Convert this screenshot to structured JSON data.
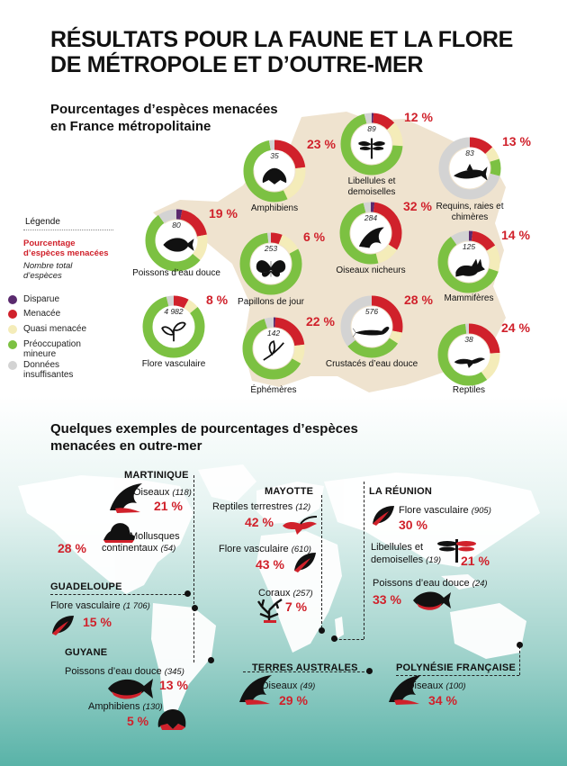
{
  "title": {
    "line1": "RÉSULTATS POUR LA FAUNE ET LA FLORE",
    "line2": "DE MÉTROPOLE ET D’OUTRE-MER"
  },
  "metro_section": {
    "line1": "Pourcentages d’espèces menacées",
    "line2": "en France métropolitaine"
  },
  "legend": {
    "title": "Légende",
    "pct_label": {
      "line1": "Pourcentage",
      "line2": "d’espèces menacées"
    },
    "total_label": {
      "line1": "Nombre total",
      "line2": "d’espèces"
    },
    "items": [
      {
        "line1": "Disparue",
        "line2": "",
        "color": "#5a2a6e"
      },
      {
        "line1": "Menacée",
        "line2": "",
        "color": "#d0212b"
      },
      {
        "line1": "Quasi menacée",
        "line2": "",
        "color": "#f4ecb9"
      },
      {
        "line1": "Préoccupation",
        "line2": "mineure",
        "color": "#7cc142"
      },
      {
        "line1": "Données",
        "line2": "insuffisantes",
        "color": "#d3d3d3"
      }
    ]
  },
  "donuts": [
    {
      "id": "amphibiens",
      "pct": "23 %",
      "count": "35",
      "label1": "Amphibiens",
      "label2": "",
      "icon": "frog-icon",
      "segments": [
        {
          "v": 0,
          "c": "#5a2a6e"
        },
        {
          "v": 23,
          "c": "#d0212b"
        },
        {
          "v": 20,
          "c": "#f4ecb9"
        },
        {
          "v": 54,
          "c": "#7cc142"
        },
        {
          "v": 3,
          "c": "#d3d3d3"
        }
      ]
    },
    {
      "id": "libellules",
      "pct": "12 %",
      "count": "89",
      "label1": "Libellules et",
      "label2": "demoiselles",
      "icon": "dragonfly-icon",
      "segments": [
        {
          "v": 1,
          "c": "#5a2a6e"
        },
        {
          "v": 12,
          "c": "#d0212b"
        },
        {
          "v": 13,
          "c": "#f4ecb9"
        },
        {
          "v": 70,
          "c": "#7cc142"
        },
        {
          "v": 4,
          "c": "#d3d3d3"
        }
      ]
    },
    {
      "id": "requins",
      "pct": "13 %",
      "count": "83",
      "label1": "Requins, raies et",
      "label2": "chimères",
      "icon": "shark-icon",
      "segments": [
        {
          "v": 0,
          "c": "#5a2a6e"
        },
        {
          "v": 13,
          "c": "#d0212b"
        },
        {
          "v": 7,
          "c": "#f4ecb9"
        },
        {
          "v": 9,
          "c": "#7cc142"
        },
        {
          "v": 71,
          "c": "#d3d3d3"
        }
      ]
    },
    {
      "id": "poissons",
      "pct": "19 %",
      "count": "80",
      "label1": "Poissons d’eau douce",
      "label2": "",
      "icon": "fish-icon",
      "segments": [
        {
          "v": 3,
          "c": "#5a2a6e"
        },
        {
          "v": 19,
          "c": "#d0212b"
        },
        {
          "v": 14,
          "c": "#f4ecb9"
        },
        {
          "v": 54,
          "c": "#7cc142"
        },
        {
          "v": 10,
          "c": "#d3d3d3"
        }
      ]
    },
    {
      "id": "papillons",
      "pct": "6 %",
      "count": "253",
      "label1": "Papillons de jour",
      "label2": "",
      "icon": "butterfly-icon",
      "segments": [
        {
          "v": 0,
          "c": "#5a2a6e"
        },
        {
          "v": 6,
          "c": "#d0212b"
        },
        {
          "v": 11,
          "c": "#f4ecb9"
        },
        {
          "v": 81,
          "c": "#7cc142"
        },
        {
          "v": 2,
          "c": "#d3d3d3"
        }
      ]
    },
    {
      "id": "oiseaux",
      "pct": "32 %",
      "count": "284",
      "label1": "Oiseaux nicheurs",
      "label2": "",
      "icon": "bird-icon",
      "segments": [
        {
          "v": 2,
          "c": "#5a2a6e"
        },
        {
          "v": 32,
          "c": "#d0212b"
        },
        {
          "v": 12,
          "c": "#f4ecb9"
        },
        {
          "v": 50,
          "c": "#7cc142"
        },
        {
          "v": 4,
          "c": "#d3d3d3"
        }
      ]
    },
    {
      "id": "mammiferes",
      "pct": "14 %",
      "count": "125",
      "label1": "Mammifères",
      "label2": "",
      "icon": "fox-icon",
      "segments": [
        {
          "v": 2,
          "c": "#5a2a6e"
        },
        {
          "v": 14,
          "c": "#d0212b"
        },
        {
          "v": 14,
          "c": "#f4ecb9"
        },
        {
          "v": 60,
          "c": "#7cc142"
        },
        {
          "v": 10,
          "c": "#d3d3d3"
        }
      ]
    },
    {
      "id": "flore",
      "pct": "8 %",
      "count": "4 982",
      "label1": "Flore vasculaire",
      "label2": "",
      "icon": "plant-icon",
      "segments": [
        {
          "v": 0,
          "c": "#5a2a6e"
        },
        {
          "v": 8,
          "c": "#d0212b"
        },
        {
          "v": 6,
          "c": "#f4ecb9"
        },
        {
          "v": 82,
          "c": "#7cc142"
        },
        {
          "v": 4,
          "c": "#d3d3d3"
        }
      ]
    },
    {
      "id": "ephemeres",
      "pct": "22 %",
      "count": "142",
      "label1": "Éphémères",
      "label2": "",
      "icon": "mayfly-icon",
      "segments": [
        {
          "v": 1,
          "c": "#5a2a6e"
        },
        {
          "v": 22,
          "c": "#d0212b"
        },
        {
          "v": 10,
          "c": "#f4ecb9"
        },
        {
          "v": 62,
          "c": "#7cc142"
        },
        {
          "v": 5,
          "c": "#d3d3d3"
        }
      ]
    },
    {
      "id": "crustaces",
      "pct": "28 %",
      "count": "576",
      "label1": "Crustacés d’eau douce",
      "label2": "",
      "icon": "crayfish-icon",
      "segments": [
        {
          "v": 0,
          "c": "#5a2a6e"
        },
        {
          "v": 28,
          "c": "#d0212b"
        },
        {
          "v": 6,
          "c": "#f4ecb9"
        },
        {
          "v": 30,
          "c": "#7cc142"
        },
        {
          "v": 36,
          "c": "#d3d3d3"
        }
      ]
    },
    {
      "id": "reptiles",
      "pct": "24 %",
      "count": "38",
      "label1": "Reptiles",
      "label2": "",
      "icon": "lizard-icon",
      "segments": [
        {
          "v": 0,
          "c": "#5a2a6e"
        },
        {
          "v": 24,
          "c": "#d0212b"
        },
        {
          "v": 16,
          "c": "#f4ecb9"
        },
        {
          "v": 58,
          "c": "#7cc142"
        },
        {
          "v": 2,
          "c": "#d3d3d3"
        }
      ]
    }
  ],
  "outremer_section": {
    "line1": "Quelques exemples de pourcentages d’espèces",
    "line2": "menacées en outre-mer"
  },
  "regions": {
    "martinique": {
      "name": "MARTINIQUE",
      "items": [
        {
          "label": "Oiseaux",
          "count": "(118)",
          "pct": "21 %",
          "icon": "bird-icon"
        },
        {
          "label": "Mollusques",
          "label2": "continentaux",
          "count": "(54)",
          "pct": "28 %",
          "icon": "snail-icon"
        }
      ]
    },
    "guadeloupe": {
      "name": "GUADELOUPE",
      "items": [
        {
          "label": "Flore vasculaire",
          "count": "(1 706)",
          "pct": "15 %",
          "icon": "leaf-icon"
        }
      ]
    },
    "guyane": {
      "name": "GUYANE",
      "items": [
        {
          "label": "Poissons d’eau douce",
          "count": "(345)",
          "pct": "13 %",
          "icon": "fish-icon"
        },
        {
          "label": "Amphibiens",
          "count": "(130)",
          "pct": "5 %",
          "icon": "frog-icon"
        }
      ]
    },
    "mayotte": {
      "name": "MAYOTTE",
      "items": [
        {
          "label": "Reptiles terrestres",
          "count": "(12)",
          "pct": "42 %",
          "icon": "lizard-icon"
        },
        {
          "label": "Flore vasculaire",
          "count": "(610)",
          "pct": "43 %",
          "icon": "leaf-icon"
        },
        {
          "label": "Coraux",
          "count": "(257)",
          "pct": "7 %",
          "icon": "coral-icon"
        }
      ]
    },
    "reunion": {
      "name": "LA RÉUNION",
      "items": [
        {
          "label": "Flore vasculaire",
          "count": "(905)",
          "pct": "30 %",
          "icon": "leaf-icon"
        },
        {
          "label": "Libellules et",
          "label2": "demoiselles",
          "count": "(19)",
          "pct": "21 %",
          "icon": "dragonfly-icon"
        },
        {
          "label": "Poissons d’eau douce",
          "count": "(24)",
          "pct": "33 %",
          "icon": "fish-icon"
        }
      ]
    },
    "terres_australes": {
      "name": "TERRES AUSTRALES",
      "items": [
        {
          "label": "Oiseaux",
          "count": "(49)",
          "pct": "29 %",
          "icon": "bird-icon"
        }
      ]
    },
    "polynesie": {
      "name": "POLYNÉSIE FRANÇAISE",
      "items": [
        {
          "label": "Oiseaux",
          "count": "(100)",
          "pct": "34 %",
          "icon": "bird-icon"
        }
      ]
    }
  }
}
